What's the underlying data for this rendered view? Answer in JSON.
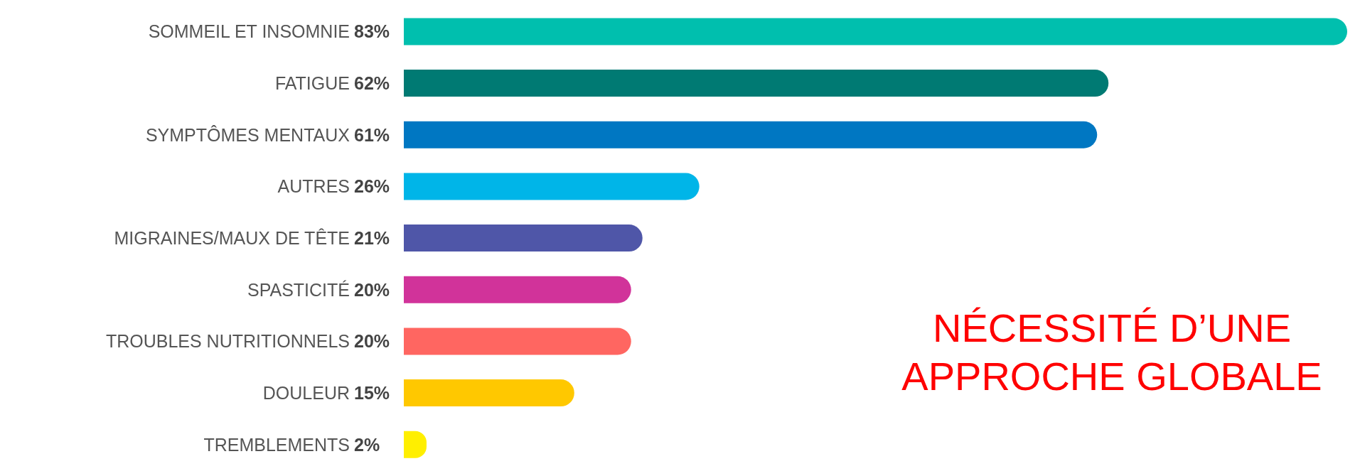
{
  "chart_data": {
    "type": "bar",
    "orientation": "horizontal",
    "categories": [
      "SOMMEIL ET INSOMNIE",
      "FATIGUE",
      "SYMPTÔMES MENTAUX",
      "AUTRES",
      "MIGRAINES/MAUX DE TÊTE",
      "SPASTICITÉ",
      "TROUBLES NUTRITIONNELS",
      "DOULEUR",
      "TREMBLEMENTS"
    ],
    "values": [
      83,
      62,
      61,
      26,
      21,
      20,
      20,
      15,
      2
    ],
    "value_labels": [
      "83%",
      "62%",
      "61%",
      "26%",
      "21%",
      "20%",
      "20%",
      "15%",
      "2%"
    ],
    "colors": [
      "#00bfae",
      "#007a73",
      "#0077c2",
      "#00b5e8",
      "#4f56a8",
      "#d1339a",
      "#ff6661",
      "#ffc800",
      "#ffef00"
    ],
    "annotations": [
      "NÉCESSITÉ D’UNE APPROCHE GLOBALE"
    ]
  }
}
